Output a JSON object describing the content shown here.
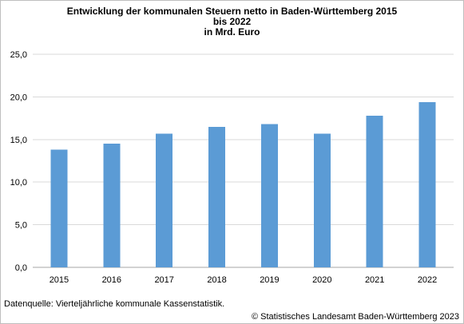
{
  "chart_data": {
    "type": "bar",
    "title_lines": [
      "Entwicklung der kommunalen Steuern netto in Baden-Württemberg 2015",
      "bis 2022",
      "in Mrd. Euro"
    ],
    "categories": [
      "2015",
      "2016",
      "2017",
      "2018",
      "2019",
      "2020",
      "2021",
      "2022"
    ],
    "values": [
      13.8,
      14.5,
      15.7,
      16.5,
      16.8,
      15.7,
      17.8,
      19.4
    ],
    "ylim": [
      0,
      25
    ],
    "yticks": [
      "0,0",
      "5,0",
      "10,0",
      "15,0",
      "20,0",
      "25,0"
    ],
    "xlabel": "",
    "ylabel": "",
    "grid": true,
    "legend": "none",
    "bar_color": "#5b9bd5"
  },
  "footer": {
    "source": "Datenquelle: Vierteljährliche kommunale Kassenstatistik.",
    "copyright": "© Statistisches Landesamt Baden-Württemberg 2023"
  }
}
